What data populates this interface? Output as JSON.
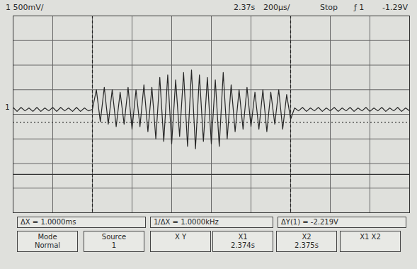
{
  "chart_data": {
    "type": "line",
    "x": [
      -1.0,
      -0.98,
      -0.96,
      -0.94,
      -0.92,
      -0.9,
      -0.88,
      -0.86,
      -0.84,
      -0.82,
      -0.8,
      -0.78,
      -0.76,
      -0.74,
      -0.72,
      -0.7,
      -0.68,
      -0.66,
      -0.64,
      -0.62,
      -0.6,
      -0.58,
      -0.56,
      -0.54,
      -0.52,
      -0.5,
      -0.48,
      -0.46,
      -0.44,
      -0.42,
      -0.4,
      -0.38,
      -0.36,
      -0.34,
      -0.32,
      -0.3,
      -0.28,
      -0.26,
      -0.24,
      -0.22,
      -0.2,
      -0.18,
      -0.16,
      -0.14,
      -0.12,
      -0.1,
      -0.08,
      -0.06,
      -0.04,
      -0.02,
      0.0,
      0.02,
      0.04,
      0.06,
      0.08,
      0.1,
      0.12,
      0.14,
      0.16,
      0.18,
      0.2,
      0.22,
      0.24,
      0.26,
      0.28,
      0.3,
      0.32,
      0.34,
      0.36,
      0.38,
      0.4,
      0.42,
      0.44,
      0.46,
      0.48,
      0.5,
      0.52,
      0.54,
      0.56,
      0.58,
      0.6,
      0.62,
      0.64,
      0.66,
      0.68,
      0.7,
      0.72,
      0.74,
      0.76,
      0.78,
      0.8,
      0.82,
      0.84,
      0.86,
      0.88,
      0.9,
      0.92,
      0.94,
      0.96,
      0.98,
      1.0
    ],
    "series": [
      {
        "name": "1",
        "color": "#262626",
        "values": [
          0.14,
          0.06,
          0.14,
          0.07,
          0.13,
          0.06,
          0.14,
          0.06,
          0.13,
          0.07,
          0.14,
          0.06,
          0.14,
          0.07,
          0.13,
          0.06,
          0.14,
          0.06,
          0.13,
          0.07,
          0.1,
          0.5,
          -0.15,
          0.55,
          -0.2,
          0.5,
          -0.25,
          0.45,
          -0.2,
          0.55,
          -0.3,
          0.5,
          -0.25,
          0.6,
          -0.35,
          0.55,
          -0.5,
          0.75,
          -0.55,
          0.8,
          -0.6,
          0.7,
          -0.45,
          0.85,
          -0.65,
          0.9,
          -0.7,
          0.8,
          -0.55,
          0.75,
          -0.6,
          0.7,
          -0.65,
          0.85,
          -0.5,
          0.6,
          -0.35,
          0.5,
          -0.3,
          0.55,
          -0.25,
          0.45,
          -0.3,
          0.5,
          -0.35,
          0.45,
          -0.2,
          0.5,
          -0.3,
          0.4,
          -0.1,
          0.13,
          0.07,
          0.14,
          0.06,
          0.13,
          0.07,
          0.14,
          0.06,
          0.13,
          0.07,
          0.14,
          0.06,
          0.13,
          0.07,
          0.14,
          0.06,
          0.13,
          0.07,
          0.14,
          0.06,
          0.13,
          0.07,
          0.14,
          0.06,
          0.13,
          0.07,
          0.14,
          0.06,
          0.13,
          0.07
        ]
      }
    ],
    "xlim": [
      -1,
      1
    ],
    "ylim": [
      -2,
      2
    ],
    "xticks": [
      -1,
      -0.8,
      -0.6,
      -0.4,
      -0.2,
      0,
      0.2,
      0.4,
      0.6,
      0.8,
      1
    ],
    "yticks": [
      -2,
      -1.5,
      -1,
      -0.5,
      0,
      0.5,
      1,
      1.5,
      2
    ],
    "grid": true,
    "tick_labels": false,
    "cursors": [
      {
        "label": "X1",
        "value": -0.6,
        "readout": "2.374s"
      },
      {
        "label": "X2",
        "value": 0.4,
        "readout": "2.375s"
      }
    ],
    "reference_lines": [
      {
        "value": -0.16,
        "line_style": "dotted"
      },
      {
        "value": -1.22,
        "line_style": "solid"
      }
    ],
    "header": [
      "1 500mV/",
      "2.37s",
      "200µs/",
      "Stop",
      "ƒ 1",
      "-1.29V"
    ],
    "readouts": [
      "ΔX = 1.0000ms",
      "1/ΔX = 1.0000kHz",
      "ΔY(1) = -2.219V"
    ],
    "softkeys": [
      [
        "Mode",
        "Normal"
      ],
      [
        "Source",
        "1"
      ],
      [
        "X  Y"
      ]
    ],
    "softkey_last": "X1 X2"
  }
}
